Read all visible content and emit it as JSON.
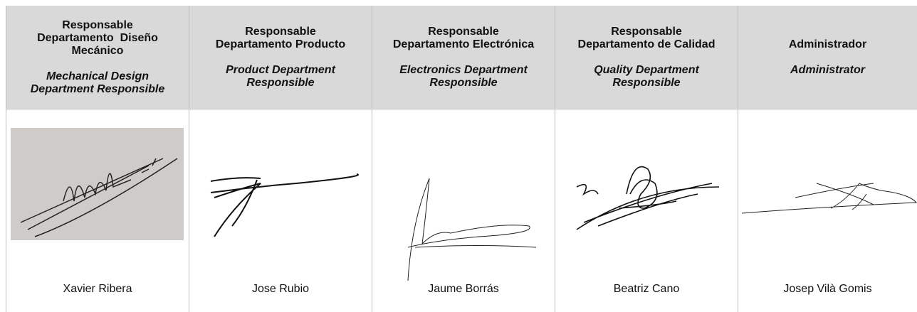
{
  "columns": [
    {
      "title_es": [
        "Responsable",
        "Departamento  Diseño",
        "Mecánico"
      ],
      "title_en": [
        "Mechanical Design",
        "Department Responsible"
      ],
      "name": "Xavier Ribera"
    },
    {
      "title_es": [
        "Responsable",
        "Departamento Producto"
      ],
      "title_en": [
        "Product Department",
        "Responsible"
      ],
      "name": "Jose Rubio"
    },
    {
      "title_es": [
        "Responsable",
        "Departamento Electrónica"
      ],
      "title_en": [
        "Electronics Department",
        "Responsible"
      ],
      "name": "Jaume Borrás"
    },
    {
      "title_es": [
        "Responsable",
        "Departamento de Calidad"
      ],
      "title_en": [
        "Quality Department",
        "Responsible"
      ],
      "name": "Beatriz Cano"
    },
    {
      "title_es": [
        "Administrador"
      ],
      "title_en": [
        "Administrator"
      ],
      "name": "Josep Vilà Gomis"
    }
  ]
}
